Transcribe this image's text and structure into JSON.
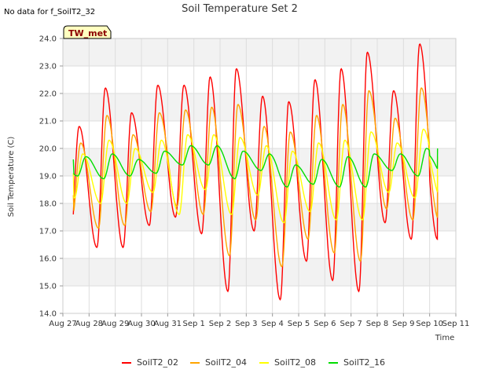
{
  "header": {
    "no_data_text": "No data for f_SoilT2_32"
  },
  "chart_data": {
    "type": "line",
    "title": "Soil Temperature Set 2",
    "xlabel": "Time",
    "ylabel": "Soil Temperature (C)",
    "tag": "TW_met",
    "ylim": [
      14.0,
      24.0
    ],
    "yticks": [
      "14.0",
      "15.0",
      "16.0",
      "17.0",
      "18.0",
      "19.0",
      "20.0",
      "21.0",
      "22.0",
      "23.0",
      "24.0"
    ],
    "xlim_days": [
      0,
      15
    ],
    "xticks": [
      "Aug 27",
      "Aug 28",
      "Aug 29",
      "Aug 30",
      "Aug 31",
      "Sep 1",
      "Sep 2",
      "Sep 3",
      "Sep 4",
      "Sep 5",
      "Sep 6",
      "Sep 7",
      "Sep 8",
      "Sep 9",
      "Sep 10",
      "Sep 11"
    ],
    "grid": true,
    "legend_position": "bottom",
    "series": [
      {
        "name": "SoilT2_02",
        "color": "#ff0000",
        "daily": [
          {
            "min": 16.9,
            "max": 20.8
          },
          {
            "min": 16.4,
            "max": 22.2
          },
          {
            "min": 16.4,
            "max": 21.3
          },
          {
            "min": 17.2,
            "max": 22.3
          },
          {
            "min": 17.5,
            "max": 22.3
          },
          {
            "min": 16.9,
            "max": 22.6
          },
          {
            "min": 14.8,
            "max": 22.9
          },
          {
            "min": 17.0,
            "max": 21.9
          },
          {
            "min": 14.5,
            "max": 21.7
          },
          {
            "min": 15.9,
            "max": 22.5
          },
          {
            "min": 15.2,
            "max": 22.9
          },
          {
            "min": 14.8,
            "max": 23.5
          },
          {
            "min": 17.3,
            "max": 22.1
          },
          {
            "min": 16.7,
            "max": 23.8
          }
        ],
        "start": 17.6,
        "end": 18.5
      },
      {
        "name": "SoilT2_04",
        "color": "#ffa500",
        "daily": [
          {
            "min": 17.5,
            "max": 20.2
          },
          {
            "min": 17.1,
            "max": 21.2
          },
          {
            "min": 17.2,
            "max": 20.5
          },
          {
            "min": 17.7,
            "max": 21.3
          },
          {
            "min": 17.9,
            "max": 21.4
          },
          {
            "min": 17.6,
            "max": 21.5
          },
          {
            "min": 16.1,
            "max": 21.6
          },
          {
            "min": 17.4,
            "max": 20.8
          },
          {
            "min": 15.7,
            "max": 20.6
          },
          {
            "min": 16.7,
            "max": 21.2
          },
          {
            "min": 16.2,
            "max": 21.6
          },
          {
            "min": 15.9,
            "max": 22.1
          },
          {
            "min": 17.8,
            "max": 21.1
          },
          {
            "min": 17.4,
            "max": 22.2
          }
        ],
        "start": 18.3,
        "end": 19.0
      },
      {
        "name": "SoilT2_08",
        "color": "#ffff00",
        "daily": [
          {
            "min": 18.2,
            "max": 19.8
          },
          {
            "min": 18.0,
            "max": 20.3
          },
          {
            "min": 18.0,
            "max": 20.0
          },
          {
            "min": 18.4,
            "max": 20.3
          },
          {
            "min": 17.6,
            "max": 20.5
          },
          {
            "min": 18.5,
            "max": 20.5
          },
          {
            "min": 17.6,
            "max": 20.4
          },
          {
            "min": 18.3,
            "max": 20.1
          },
          {
            "min": 17.3,
            "max": 19.9
          },
          {
            "min": 17.7,
            "max": 20.2
          },
          {
            "min": 17.4,
            "max": 20.3
          },
          {
            "min": 17.4,
            "max": 20.6
          },
          {
            "min": 18.4,
            "max": 20.2
          },
          {
            "min": 18.2,
            "max": 20.7
          }
        ],
        "start": 19.1,
        "end": 19.7
      },
      {
        "name": "SoilT2_16",
        "color": "#00dd00",
        "daily": [
          {
            "min": 19.0,
            "max": 19.7
          },
          {
            "min": 18.9,
            "max": 19.8
          },
          {
            "min": 19.0,
            "max": 19.6
          },
          {
            "min": 19.1,
            "max": 19.9
          },
          {
            "min": 19.4,
            "max": 20.1
          },
          {
            "min": 19.4,
            "max": 20.1
          },
          {
            "min": 18.9,
            "max": 19.9
          },
          {
            "min": 19.2,
            "max": 19.8
          },
          {
            "min": 18.6,
            "max": 19.4
          },
          {
            "min": 18.7,
            "max": 19.6
          },
          {
            "min": 18.6,
            "max": 19.7
          },
          {
            "min": 18.6,
            "max": 19.8
          },
          {
            "min": 19.2,
            "max": 19.8
          },
          {
            "min": 19.0,
            "max": 20.0
          }
        ],
        "start": 19.6,
        "end": 20.0
      }
    ]
  }
}
